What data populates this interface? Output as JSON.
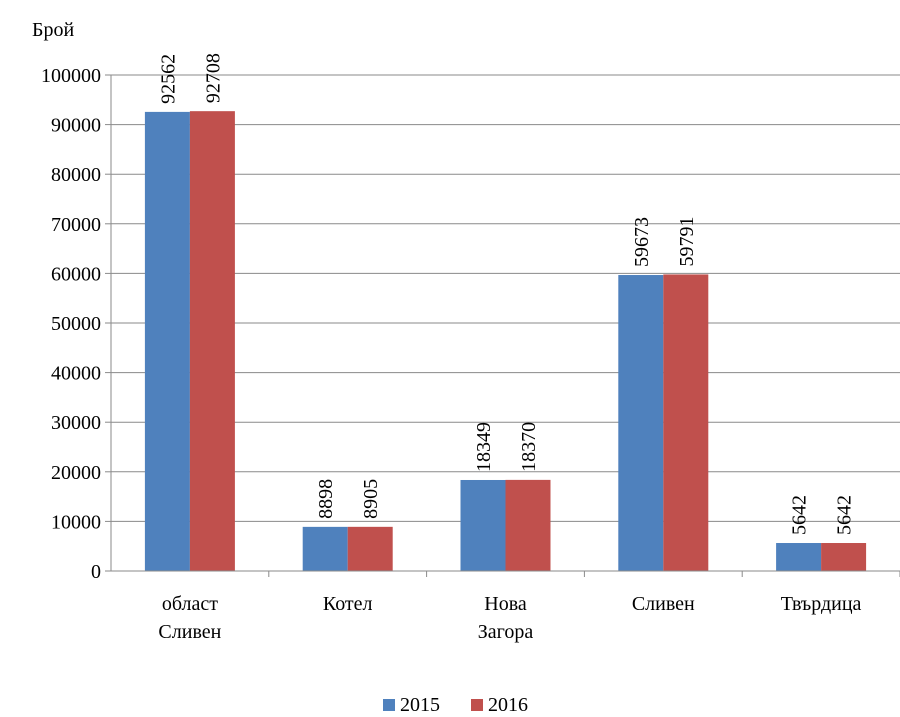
{
  "chart_data": {
    "type": "bar",
    "ylabel": "Брой",
    "ylim": [
      0,
      100000
    ],
    "yticks": [
      0,
      10000,
      20000,
      30000,
      40000,
      50000,
      60000,
      70000,
      80000,
      90000,
      100000
    ],
    "grid": true,
    "legend_position": "bottom-center",
    "categories": [
      [
        "област",
        "Сливен"
      ],
      [
        "Котел"
      ],
      [
        "Нова",
        "Загора"
      ],
      [
        "Сливен"
      ],
      [
        "Твърдица"
      ]
    ],
    "series": [
      {
        "name": "2015",
        "color": "#4f81bd",
        "values": [
          92562,
          8898,
          18349,
          59673,
          5642
        ]
      },
      {
        "name": "2016",
        "color": "#c0504d",
        "values": [
          92708,
          8905,
          18370,
          59791,
          5642
        ]
      }
    ]
  }
}
